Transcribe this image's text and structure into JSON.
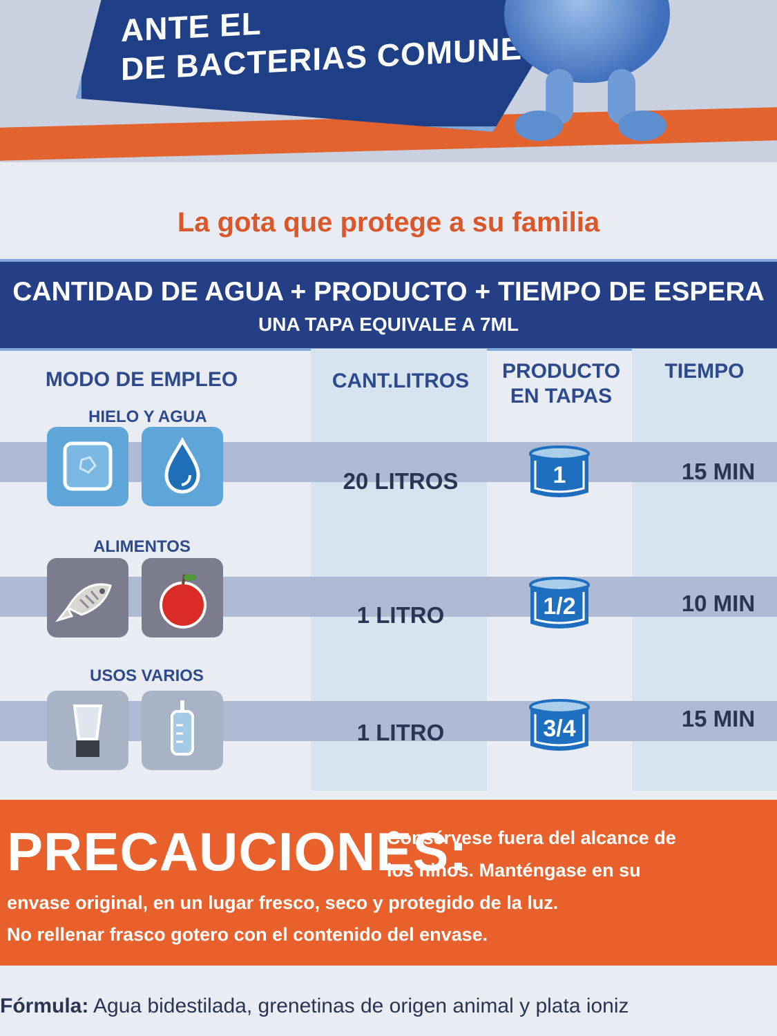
{
  "banner": {
    "line1": "ANTE EL",
    "line2": "DE BACTERIAS COMUNES"
  },
  "slogan": "La gota que protege a su familia",
  "band": {
    "line1": "CANTIDAD DE AGUA + PRODUCTO + TIEMPO DE ESPERA",
    "line2": "UNA TAPA EQUIVALE A 7ML"
  },
  "table": {
    "headers": {
      "mode": "MODO DE EMPLEO",
      "liters": "CANT.LITROS",
      "product": "PRODUCTO EN TAPAS",
      "time": "TIEMPO"
    },
    "rows": [
      {
        "group": "HIELO Y AGUA",
        "liters": "20 LITROS",
        "caps": "1",
        "time": "15 MIN",
        "icons": [
          "ice-cube-icon",
          "water-drop-icon"
        ]
      },
      {
        "group": "ALIMENTOS",
        "liters": "1 LITRO",
        "caps": "1/2",
        "time": "10 MIN",
        "icons": [
          "fish-icon",
          "apple-icon"
        ]
      },
      {
        "group": "USOS VARIOS",
        "liters": "1 LITRO",
        "caps": "3/4",
        "time": "15 MIN",
        "icons": [
          "blender-icon",
          "baby-bottle-icon"
        ]
      }
    ]
  },
  "precautions": {
    "title": "PRECAUCIONES:",
    "line1": "Consérvese fuera del alcance de",
    "line2": "los niños. Manténgase en su",
    "line3": "envase original, en un lugar fresco, seco y protegido de la luz.",
    "line4": "No rellenar frasco gotero con el contenido del envase."
  },
  "formula": {
    "label": "Fórmula:",
    "text": "Agua bidestilada, grenetinas de origen animal y plata ioniz"
  },
  "colors": {
    "navy": "#253f86",
    "orange": "#e8602c",
    "slogan_orange": "#d9572a",
    "tile_blue": "#5ea6d8",
    "tile_gray": "#7b7d8f",
    "cap_blue": "#1e6fc0"
  }
}
